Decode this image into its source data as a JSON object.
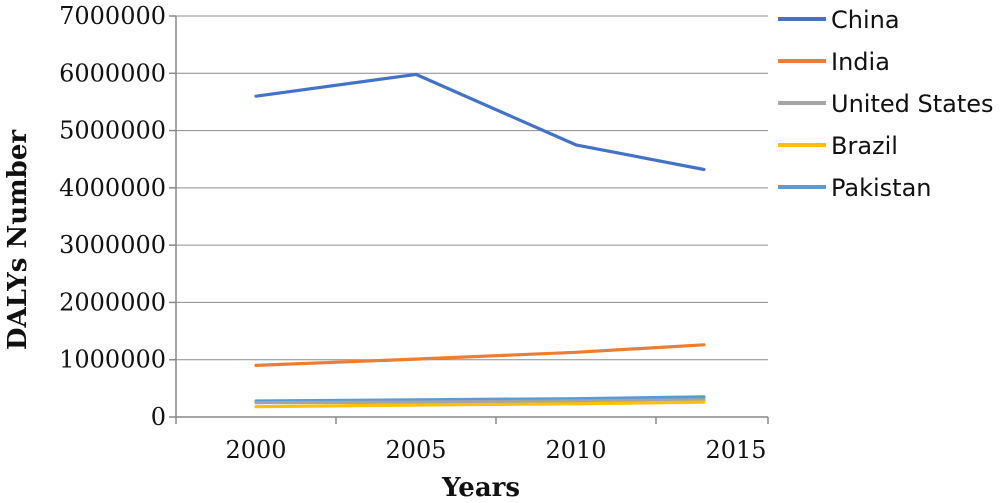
{
  "chart_data": {
    "type": "line",
    "xlabel": "Years",
    "ylabel": "DALYs Number",
    "x": [
      2000,
      2005,
      2010,
      2014
    ],
    "xticks": [
      "2000",
      "2005",
      "2010",
      "2015"
    ],
    "yticks": [
      "0",
      "1000000",
      "2000000",
      "3000000",
      "4000000",
      "5000000",
      "6000000",
      "7000000"
    ],
    "ylim": [
      0,
      7000000
    ],
    "grid": "horizontal",
    "legend_position": "right",
    "series": [
      {
        "name": "China",
        "color": "#4472C4",
        "values": [
          5600000,
          5980000,
          4750000,
          4320000
        ]
      },
      {
        "name": "India",
        "color": "#ED7D31",
        "values": [
          900000,
          1010000,
          1130000,
          1260000
        ]
      },
      {
        "name": "United States",
        "color": "#A5A5A5",
        "values": [
          250000,
          260000,
          280000,
          300000
        ]
      },
      {
        "name": "Brazil",
        "color": "#FFC000",
        "values": [
          180000,
          210000,
          230000,
          260000
        ]
      },
      {
        "name": "Pakistan",
        "color": "#5B9BD5",
        "values": [
          280000,
          300000,
          320000,
          350000
        ]
      }
    ]
  }
}
